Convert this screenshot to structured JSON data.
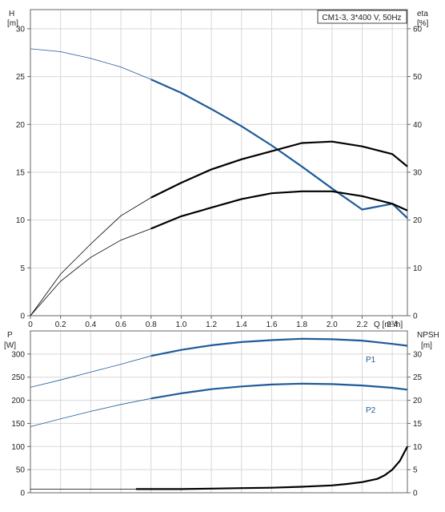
{
  "chart_data": [
    {
      "type": "line",
      "title": "CM1-3, 3*400 V, 50Hz",
      "xlabel": "Q [m³/h]",
      "ylabel_left": [
        "H",
        "[m]"
      ],
      "ylabel_right": [
        "eta",
        "[%]"
      ],
      "xlim": [
        0,
        2.5
      ],
      "ylim_left": [
        0,
        32
      ],
      "ylim_right": [
        0,
        64
      ],
      "x_ticks": [
        "0",
        "0.2",
        "0.4",
        "0.6",
        "0.8",
        "1.0",
        "1.2",
        "1.4",
        "1.6",
        "1.8",
        "2.0",
        "2.2",
        "2.4"
      ],
      "y_left_ticks": [
        "0",
        "5",
        "10",
        "15",
        "20",
        "25",
        "30"
      ],
      "y_right_ticks": [
        "0",
        "10",
        "20",
        "30",
        "40",
        "50",
        "60"
      ],
      "grid": true,
      "series": [
        {
          "axis": "left",
          "color": "#1f5b99",
          "highlight": [
            0.7,
            2.5
          ],
          "x": [
            0,
            0.2,
            0.4,
            0.6,
            0.8,
            1.0,
            1.2,
            1.4,
            1.6,
            1.8,
            2.0,
            2.2,
            2.4,
            2.5
          ],
          "y": [
            27.9,
            27.6,
            26.9,
            26.0,
            24.7,
            23.3,
            21.6,
            19.8,
            17.8,
            15.6,
            13.3,
            11.1,
            11.7,
            10.2
          ]
        },
        {
          "axis": "right",
          "color": "#000000",
          "highlight": [
            0.7,
            2.5
          ],
          "x": [
            0,
            0.2,
            0.4,
            0.6,
            0.8,
            1.0,
            1.2,
            1.4,
            1.6,
            1.8,
            2.0,
            2.2,
            2.4,
            2.5
          ],
          "y": [
            0,
            8.7,
            15.0,
            20.9,
            24.7,
            27.8,
            30.6,
            32.7,
            34.4,
            36.1,
            36.4,
            35.4,
            33.8,
            31.2
          ]
        },
        {
          "axis": "left",
          "color": "#000000",
          "highlight": [
            0.7,
            2.5
          ],
          "x": [
            0,
            0.2,
            0.4,
            0.6,
            0.8,
            1.0,
            1.2,
            1.4,
            1.6,
            1.8,
            2.0,
            2.2,
            2.4,
            2.5
          ],
          "y": [
            0,
            3.6,
            6.1,
            7.9,
            9.1,
            10.4,
            11.3,
            12.2,
            12.8,
            13.0,
            13.0,
            12.5,
            11.7,
            11.0
          ]
        }
      ]
    },
    {
      "type": "line",
      "xlabel": "",
      "ylabel_left": [
        "P",
        "[W]"
      ],
      "ylabel_right": [
        "NPSH",
        "[m]"
      ],
      "xlim": [
        0,
        2.5
      ],
      "ylim_left": [
        0,
        350
      ],
      "ylim_right": [
        0,
        35
      ],
      "y_left_ticks": [
        "0",
        "50",
        "100",
        "150",
        "200",
        "250",
        "300"
      ],
      "y_right_ticks": [
        "0",
        "5",
        "10",
        "15",
        "20",
        "25",
        "30"
      ],
      "grid": true,
      "series": [
        {
          "name": "P1",
          "axis": "left",
          "color": "#1f5b99",
          "highlight": [
            0.7,
            2.5
          ],
          "x": [
            0,
            0.2,
            0.4,
            0.6,
            0.8,
            1.0,
            1.2,
            1.4,
            1.6,
            1.8,
            2.0,
            2.2,
            2.4,
            2.5
          ],
          "y": [
            228,
            244,
            261,
            278,
            296,
            309,
            319,
            326,
            330,
            333,
            332,
            329,
            322,
            318
          ]
        },
        {
          "name": "P2",
          "axis": "left",
          "color": "#1f5b99",
          "highlight": [
            0.7,
            2.5
          ],
          "x": [
            0,
            0.2,
            0.4,
            0.6,
            0.8,
            1.0,
            1.2,
            1.4,
            1.6,
            1.8,
            2.0,
            2.2,
            2.4,
            2.5
          ],
          "y": [
            143,
            160,
            176,
            191,
            204,
            215,
            224,
            230,
            234,
            236,
            235,
            232,
            227,
            223
          ]
        },
        {
          "axis": "right",
          "color": "#000000",
          "highlight": [
            0.7,
            2.5
          ],
          "x": [
            0,
            0.7,
            1.0,
            1.2,
            1.4,
            1.6,
            1.8,
            2.0,
            2.1,
            2.2,
            2.3,
            2.35,
            2.4,
            2.45,
            2.5
          ],
          "y": [
            0.8,
            0.8,
            0.8,
            0.9,
            1.0,
            1.1,
            1.3,
            1.6,
            1.9,
            2.3,
            3.0,
            3.8,
            5.0,
            6.9,
            10.0
          ]
        }
      ]
    }
  ]
}
